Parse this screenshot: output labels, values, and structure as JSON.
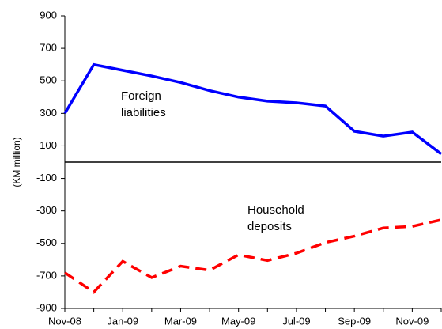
{
  "chart_data": {
    "type": "line",
    "y_axis_label": "(KM million)",
    "categories": [
      "Nov-08",
      null,
      "Jan-09",
      null,
      "Mar-09",
      null,
      "May-09",
      null,
      "Jul-09",
      null,
      "Sep-09",
      null,
      "Nov-09",
      null
    ],
    "series": [
      {
        "name": "Foreign liabilities",
        "color": "#0000ff",
        "dash": false,
        "values": [
          300,
          600,
          565,
          530,
          490,
          440,
          400,
          375,
          365,
          345,
          190,
          160,
          185,
          50
        ]
      },
      {
        "name": "Household deposits",
        "color": "#ff0000",
        "dash": true,
        "values": [
          -680,
          -800,
          -610,
          -710,
          -640,
          -665,
          -570,
          -605,
          -560,
          -495,
          -455,
          -405,
          -395,
          -355
        ]
      }
    ],
    "annotations": [
      [
        "Foreign",
        "liabilities"
      ],
      [
        "Household",
        "deposits"
      ]
    ],
    "ylim": [
      -900,
      900
    ],
    "yticks": [
      900,
      700,
      500,
      300,
      100,
      -100,
      -300,
      -500,
      -700,
      -900
    ],
    "grid": false
  }
}
